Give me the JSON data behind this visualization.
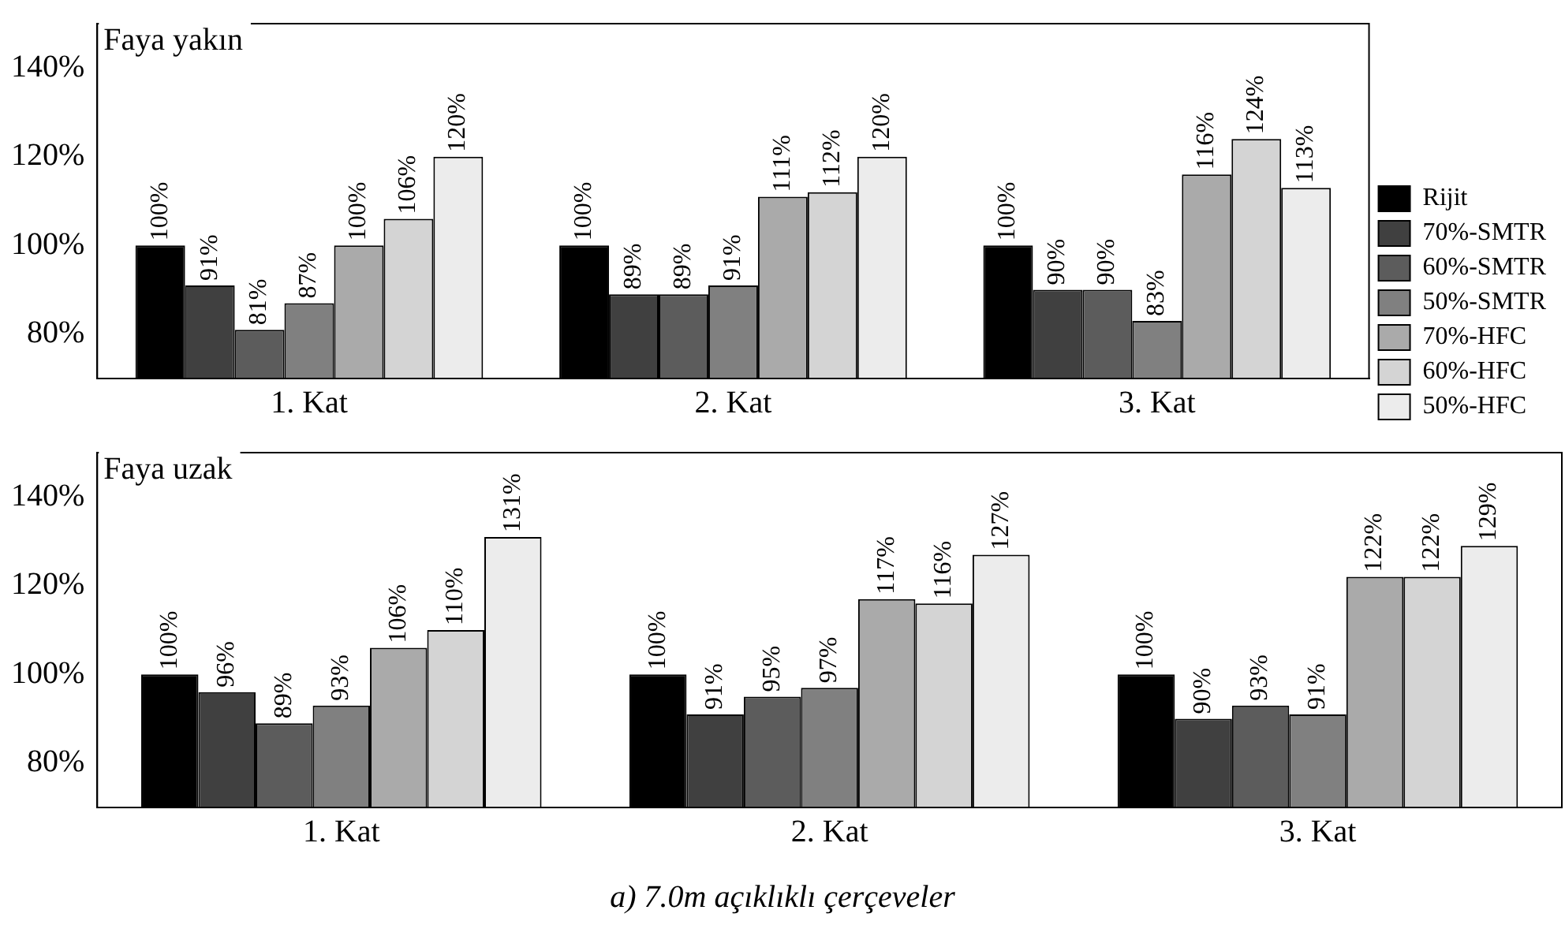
{
  "chart_data": [
    {
      "type": "bar",
      "title": "Faya yakın",
      "categories": [
        "1. Kat",
        "2. Kat",
        "3. Kat"
      ],
      "ylim": [
        70,
        150
      ],
      "yticks": [
        {
          "value": 80,
          "label": "80%"
        },
        {
          "value": 100,
          "label": "100%"
        },
        {
          "value": 120,
          "label": "120%"
        },
        {
          "value": 140,
          "label": "140%"
        }
      ],
      "grid": false,
      "legend": "right",
      "series": [
        {
          "name": "Rijit",
          "color": "#000000",
          "values": [
            100,
            100,
            100
          ],
          "value_labels": [
            "100%",
            "100%",
            "100%"
          ]
        },
        {
          "name": "70%-SMTR",
          "color": "#404040",
          "values": [
            91,
            89,
            90
          ],
          "value_labels": [
            "91%",
            "89%",
            "90%"
          ]
        },
        {
          "name": "60%-SMTR",
          "color": "#5c5c5c",
          "values": [
            81,
            89,
            90
          ],
          "value_labels": [
            "81%",
            "89%",
            "90%"
          ]
        },
        {
          "name": "50%-SMTR",
          "color": "#808080",
          "values": [
            87,
            91,
            83
          ],
          "value_labels": [
            "87%",
            "91%",
            "83%"
          ]
        },
        {
          "name": "70%-HFC",
          "color": "#aaaaaa",
          "values": [
            100,
            111,
            116
          ],
          "value_labels": [
            "100%",
            "111%",
            "116%"
          ]
        },
        {
          "name": "60%-HFC",
          "color": "#d4d4d4",
          "values": [
            106,
            112,
            124
          ],
          "value_labels": [
            "106%",
            "112%",
            "124%"
          ]
        },
        {
          "name": "50%-HFC",
          "color": "#ececec",
          "values": [
            120,
            120,
            113
          ],
          "value_labels": [
            "120%",
            "120%",
            "113%"
          ]
        }
      ]
    },
    {
      "type": "bar",
      "title": "Faya uzak",
      "categories": [
        "1. Kat",
        "2. Kat",
        "3. Kat"
      ],
      "ylim": [
        70,
        150
      ],
      "yticks": [
        {
          "value": 80,
          "label": "80%"
        },
        {
          "value": 100,
          "label": "100%"
        },
        {
          "value": 120,
          "label": "120%"
        },
        {
          "value": 140,
          "label": "140%"
        }
      ],
      "grid": false,
      "legend": false,
      "annotations": [
        "a) 7.0m açıklıklı çerçeveler"
      ],
      "series": [
        {
          "color": "#000000",
          "values": [
            100,
            100,
            100
          ],
          "value_labels": [
            "100%",
            "100%",
            "100%"
          ]
        },
        {
          "color": "#404040",
          "values": [
            96,
            91,
            90
          ],
          "value_labels": [
            "96%",
            "91%",
            "90%"
          ]
        },
        {
          "color": "#5c5c5c",
          "values": [
            89,
            95,
            93
          ],
          "value_labels": [
            "89%",
            "95%",
            "93%"
          ]
        },
        {
          "color": "#808080",
          "values": [
            93,
            97,
            91
          ],
          "value_labels": [
            "93%",
            "97%",
            "91%"
          ]
        },
        {
          "color": "#aaaaaa",
          "values": [
            106,
            117,
            122
          ],
          "value_labels": [
            "106%",
            "117%",
            "122%"
          ]
        },
        {
          "color": "#d4d4d4",
          "values": [
            110,
            116,
            122
          ],
          "value_labels": [
            "110%",
            "116%",
            "122%"
          ]
        },
        {
          "color": "#ececec",
          "values": [
            131,
            127,
            129
          ],
          "value_labels": [
            "131%",
            "127%",
            "129%"
          ]
        }
      ]
    }
  ]
}
